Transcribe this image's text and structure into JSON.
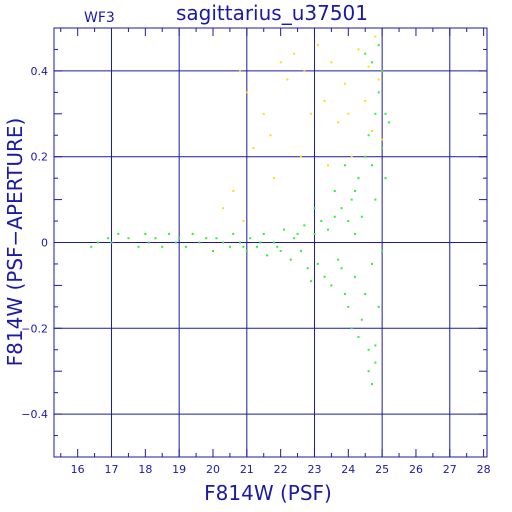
{
  "chart_data": {
    "type": "scatter",
    "title": "sagittarius_u37501",
    "panel_label": "WF3",
    "xlabel": "F814W (PSF)",
    "ylabel": "F814W (PSF−APERTURE)",
    "xlim": [
      15.3,
      28.1
    ],
    "ylim": [
      -0.5,
      0.5
    ],
    "x_ticks": [
      "16",
      "17",
      "18",
      "19",
      "20",
      "21",
      "22",
      "23",
      "24",
      "25",
      "26",
      "27",
      "28"
    ],
    "y_ticks": [
      "0.4",
      "0.2",
      "0",
      "−0.2",
      "−0.4"
    ],
    "y_tick_values": [
      0.4,
      0.2,
      0,
      -0.2,
      -0.4
    ],
    "grid": true,
    "series": [
      {
        "color": "#33ee33",
        "description": "main stellar sequence near zero that widens with fainter magnitude",
        "points": [
          [
            16.4,
            -0.01
          ],
          [
            16.6,
            0.0
          ],
          [
            16.9,
            0.01
          ],
          [
            17.0,
            0.0
          ],
          [
            17.2,
            0.02
          ],
          [
            17.5,
            0.01
          ],
          [
            17.8,
            -0.01
          ],
          [
            18.0,
            0.02
          ],
          [
            18.1,
            0.0
          ],
          [
            18.3,
            0.01
          ],
          [
            18.5,
            -0.01
          ],
          [
            18.7,
            0.02
          ],
          [
            18.9,
            0.0
          ],
          [
            19.0,
            0.01
          ],
          [
            19.2,
            -0.01
          ],
          [
            19.4,
            0.02
          ],
          [
            19.6,
            0.0
          ],
          [
            19.8,
            0.01
          ],
          [
            20.0,
            -0.02
          ],
          [
            20.1,
            0.01
          ],
          [
            20.3,
            0.0
          ],
          [
            20.5,
            -0.01
          ],
          [
            20.6,
            0.02
          ],
          [
            20.8,
            0.0
          ],
          [
            21.0,
            -0.02
          ],
          [
            21.1,
            0.01
          ],
          [
            21.3,
            -0.01
          ],
          [
            21.5,
            0.02
          ],
          [
            21.6,
            -0.03
          ],
          [
            21.8,
            0.0
          ],
          [
            22.0,
            -0.02
          ],
          [
            22.1,
            0.03
          ],
          [
            22.3,
            -0.04
          ],
          [
            22.4,
            0.01
          ],
          [
            22.6,
            -0.02
          ],
          [
            22.7,
            0.04
          ],
          [
            22.8,
            -0.06
          ],
          [
            23.0,
            0.02
          ],
          [
            23.1,
            -0.05
          ],
          [
            23.2,
            0.05
          ],
          [
            23.3,
            -0.08
          ],
          [
            23.4,
            0.03
          ],
          [
            23.5,
            -0.1
          ],
          [
            23.6,
            0.06
          ],
          [
            23.7,
            -0.04
          ],
          [
            23.8,
            0.08
          ],
          [
            23.9,
            -0.12
          ],
          [
            24.0,
            0.05
          ],
          [
            24.0,
            -0.15
          ],
          [
            24.1,
            0.1
          ],
          [
            24.1,
            -0.2
          ],
          [
            24.2,
            0.12
          ],
          [
            24.2,
            -0.08
          ],
          [
            24.3,
            0.15
          ],
          [
            24.3,
            -0.22
          ],
          [
            24.4,
            0.06
          ],
          [
            24.4,
            -0.18
          ],
          [
            24.5,
            0.2
          ],
          [
            24.5,
            -0.12
          ],
          [
            24.6,
            0.25
          ],
          [
            24.6,
            -0.25
          ],
          [
            24.7,
            0.18
          ],
          [
            24.7,
            -0.05
          ],
          [
            24.8,
            0.3
          ],
          [
            24.8,
            -0.28
          ],
          [
            24.8,
            0.1
          ],
          [
            24.9,
            0.35
          ],
          [
            24.9,
            -0.15
          ],
          [
            25.0,
            0.4
          ],
          [
            25.0,
            0.22
          ],
          [
            25.0,
            -0.02
          ],
          [
            25.1,
            0.3
          ],
          [
            25.1,
            0.15
          ],
          [
            25.2,
            0.28
          ],
          [
            24.5,
            0.44
          ],
          [
            24.7,
            0.42
          ],
          [
            24.9,
            0.46
          ],
          [
            23.6,
            0.12
          ],
          [
            23.9,
            0.18
          ],
          [
            24.2,
            0.02
          ],
          [
            24.6,
            -0.3
          ],
          [
            24.7,
            -0.33
          ],
          [
            24.8,
            -0.24
          ],
          [
            22.9,
            -0.09
          ],
          [
            22.5,
            0.02
          ],
          [
            21.9,
            -0.01
          ],
          [
            21.4,
            0.0
          ],
          [
            20.9,
            -0.01
          ],
          [
            23.0,
            0.08
          ],
          [
            23.8,
            -0.06
          ]
        ]
      },
      {
        "color": "#ffdd00",
        "description": "sparse objects with positive PSF minus aperture values",
        "points": [
          [
            20.3,
            0.08
          ],
          [
            20.6,
            0.12
          ],
          [
            20.8,
            0.4
          ],
          [
            21.0,
            0.35
          ],
          [
            21.2,
            0.22
          ],
          [
            21.5,
            0.3
          ],
          [
            21.7,
            0.25
          ],
          [
            22.0,
            0.42
          ],
          [
            22.2,
            0.38
          ],
          [
            22.4,
            0.44
          ],
          [
            22.7,
            0.4
          ],
          [
            22.9,
            0.3
          ],
          [
            23.1,
            0.46
          ],
          [
            23.3,
            0.33
          ],
          [
            23.5,
            0.42
          ],
          [
            23.7,
            0.28
          ],
          [
            23.9,
            0.37
          ],
          [
            24.1,
            0.2
          ],
          [
            24.3,
            0.45
          ],
          [
            24.5,
            0.33
          ],
          [
            24.7,
            0.26
          ],
          [
            24.8,
            0.48
          ],
          [
            24.9,
            0.38
          ],
          [
            25.0,
            0.24
          ],
          [
            21.8,
            0.15
          ],
          [
            22.6,
            0.2
          ],
          [
            23.4,
            0.18
          ],
          [
            24.0,
            0.3
          ],
          [
            24.6,
            0.41
          ],
          [
            20.9,
            0.05
          ]
        ]
      }
    ]
  }
}
